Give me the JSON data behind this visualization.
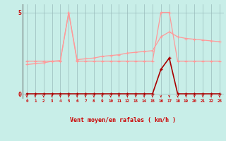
{
  "x": [
    0,
    1,
    2,
    3,
    4,
    5,
    6,
    7,
    8,
    9,
    10,
    11,
    12,
    13,
    14,
    15,
    16,
    17,
    18,
    19,
    20,
    21,
    22,
    23
  ],
  "rafales": [
    2.0,
    2.0,
    2.0,
    2.0,
    2.0,
    5.0,
    2.0,
    2.0,
    2.0,
    2.0,
    2.0,
    2.0,
    2.0,
    2.0,
    2.0,
    2.0,
    5.0,
    5.0,
    2.0,
    2.0,
    2.0,
    2.0,
    2.0,
    2.0
  ],
  "vent_moyen": [
    1.8,
    1.85,
    1.9,
    2.0,
    2.05,
    5.0,
    2.1,
    2.15,
    2.2,
    2.3,
    2.35,
    2.4,
    2.5,
    2.55,
    2.6,
    2.65,
    3.5,
    3.8,
    3.5,
    3.4,
    3.35,
    3.3,
    3.25,
    3.2
  ],
  "vent_dark": [
    0.0,
    0.0,
    0.0,
    0.0,
    0.0,
    0.0,
    0.0,
    0.0,
    0.0,
    0.0,
    0.0,
    0.0,
    0.0,
    0.0,
    0.0,
    0.0,
    1.5,
    2.2,
    0.0,
    0.0,
    0.0,
    0.0,
    0.0,
    0.0
  ],
  "color_light": "#FF9999",
  "color_dark": "#AA0000",
  "bg_color": "#C8EEE8",
  "grid_color": "#99BBBB",
  "xlabel": "Vent moyen/en rafales ( km/h )",
  "tick_color": "#CC0000",
  "xlim": [
    -0.5,
    23.5
  ],
  "ylim": [
    -0.3,
    5.5
  ],
  "figsize": [
    3.2,
    2.0
  ],
  "dpi": 100
}
